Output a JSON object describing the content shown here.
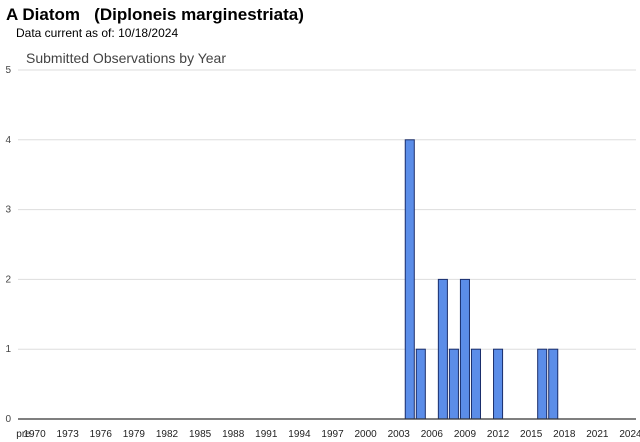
{
  "header": {
    "common_name": "A Diatom",
    "scientific_name": "(Diploneis marginestriata)",
    "data_current_label": "Data current as of:",
    "data_current_date": "10/18/2024"
  },
  "chart_data": {
    "type": "bar",
    "title": "Submitted Observations by Year",
    "xlabel": "",
    "ylabel": "",
    "ylim": [
      0,
      5
    ],
    "yticks": [
      0,
      1,
      2,
      3,
      4,
      5
    ],
    "grid": true,
    "legend": "none",
    "colors": {
      "bar_fill": "#5b8de8",
      "bar_stroke": "#1a2e6b",
      "grid": "#dddddd",
      "axis": "#333333"
    },
    "categories": [
      "pre",
      "1970",
      "1971",
      "1972",
      "1973",
      "1974",
      "1975",
      "1976",
      "1977",
      "1978",
      "1979",
      "1980",
      "1981",
      "1982",
      "1983",
      "1984",
      "1985",
      "1986",
      "1987",
      "1988",
      "1989",
      "1990",
      "1991",
      "1992",
      "1993",
      "1994",
      "1995",
      "1996",
      "1997",
      "1998",
      "1999",
      "2000",
      "2001",
      "2002",
      "2003",
      "2004",
      "2005",
      "2006",
      "2007",
      "2008",
      "2009",
      "2010",
      "2011",
      "2012",
      "2013",
      "2014",
      "2015",
      "2016",
      "2017",
      "2018",
      "2019",
      "2020",
      "2021",
      "2022",
      "2023",
      "2024"
    ],
    "values": [
      0,
      0,
      0,
      0,
      0,
      0,
      0,
      0,
      0,
      0,
      0,
      0,
      0,
      0,
      0,
      0,
      0,
      0,
      0,
      0,
      0,
      0,
      0,
      0,
      0,
      0,
      0,
      0,
      0,
      0,
      0,
      0,
      0,
      0,
      0,
      4,
      1,
      0,
      2,
      1,
      2,
      1,
      0,
      1,
      0,
      0,
      0,
      1,
      1,
      0,
      0,
      0,
      0,
      0,
      0,
      0
    ],
    "x_tick_labels": [
      "pre",
      "1970",
      "1973",
      "1976",
      "1979",
      "1982",
      "1985",
      "1988",
      "1991",
      "1994",
      "1997",
      "2000",
      "2003",
      "2006",
      "2009",
      "2012",
      "2015",
      "2018",
      "2021",
      "2024"
    ]
  }
}
